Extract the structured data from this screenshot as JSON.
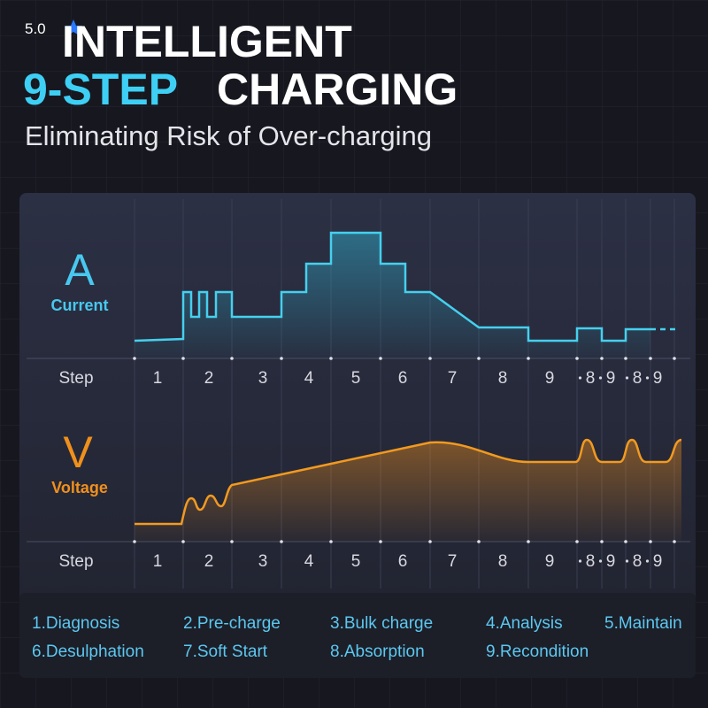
{
  "rating": "5.0",
  "header": {
    "title_line1": "INTELLIGENT",
    "title_highlight": "9-STEP",
    "title_rest": "CHARGING",
    "subtitle": "Eliminating Risk of Over-charging"
  },
  "current_panel": {
    "symbol": "A",
    "label": "Current",
    "axis_label": "Step",
    "steps": [
      "1",
      "2",
      "3",
      "4",
      "5",
      "6",
      "7",
      "8",
      "9",
      "8",
      "9",
      "8",
      "9"
    ]
  },
  "voltage_panel": {
    "symbol": "V",
    "label": "Voltage",
    "axis_label": "Step",
    "steps": [
      "1",
      "2",
      "3",
      "4",
      "5",
      "6",
      "7",
      "8",
      "9",
      "8",
      "9",
      "8",
      "9"
    ]
  },
  "legend": [
    "1.Diagnosis",
    "2.Pre-charge",
    "3.Bulk charge",
    "4.Analysis",
    "5.Maintain",
    "6.Desulphation",
    "7.Soft Start",
    "8.Absorption",
    "9.Recondition"
  ]
}
